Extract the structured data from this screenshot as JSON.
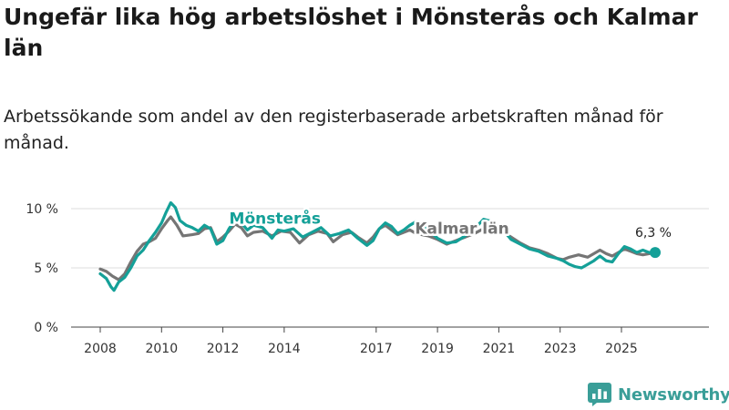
{
  "title": "Ungefär lika hög arbetslöshet i Mönsterås och Kalmar län",
  "subtitle": "Arbetssökande som andel av den registerbaserade arbetskraften månad för månad.",
  "brand": {
    "name": "Newsworthy",
    "icon": "bar-chart-logo-icon",
    "color": "#3a9e98"
  },
  "colors": {
    "monsteras": "#14a098",
    "kalmar": "#757575",
    "grid": "#dddddd",
    "axis": "#444444"
  },
  "chart_data": {
    "type": "line",
    "title": "Ungefär lika hög arbetslöshet i Mönsterås och Kalmar län",
    "xlabel": "",
    "ylabel": "",
    "xlim": [
      2008.0,
      2027.2
    ],
    "ylim": [
      0,
      10
    ],
    "x_ticks": [
      {
        "value": 2008,
        "label": "2008"
      },
      {
        "value": 2010,
        "label": "2010"
      },
      {
        "value": 2012,
        "label": "2012"
      },
      {
        "value": 2014,
        "label": "2014"
      },
      {
        "value": 2017,
        "label": "2017"
      },
      {
        "value": 2019,
        "label": "2019"
      },
      {
        "value": 2021,
        "label": "2021"
      },
      {
        "value": 2023,
        "label": "2023"
      },
      {
        "value": 2025,
        "label": "2025"
      }
    ],
    "y_ticks": [
      {
        "value": 0,
        "label": "0 %"
      },
      {
        "value": 5,
        "label": "5 %"
      },
      {
        "value": 10,
        "label": "10 %"
      }
    ],
    "series": [
      {
        "name": "Kalmar län",
        "color": "#757575",
        "points": [
          [
            2008.0,
            4.9
          ],
          [
            2008.2,
            4.7
          ],
          [
            2008.4,
            4.3
          ],
          [
            2008.6,
            4.0
          ],
          [
            2008.8,
            4.5
          ],
          [
            2009.0,
            5.5
          ],
          [
            2009.2,
            6.4
          ],
          [
            2009.4,
            7.0
          ],
          [
            2009.6,
            7.2
          ],
          [
            2009.8,
            7.5
          ],
          [
            2010.0,
            8.3
          ],
          [
            2010.2,
            9.0
          ],
          [
            2010.3,
            9.3
          ],
          [
            2010.5,
            8.6
          ],
          [
            2010.7,
            7.7
          ],
          [
            2011.0,
            7.8
          ],
          [
            2011.2,
            7.9
          ],
          [
            2011.4,
            8.3
          ],
          [
            2011.6,
            8.4
          ],
          [
            2011.8,
            7.2
          ],
          [
            2012.0,
            7.6
          ],
          [
            2012.2,
            8.1
          ],
          [
            2012.4,
            8.7
          ],
          [
            2012.6,
            8.4
          ],
          [
            2012.8,
            7.7
          ],
          [
            2013.0,
            8.0
          ],
          [
            2013.3,
            8.1
          ],
          [
            2013.6,
            7.7
          ],
          [
            2013.9,
            8.1
          ],
          [
            2014.2,
            8.0
          ],
          [
            2014.5,
            7.1
          ],
          [
            2014.8,
            7.8
          ],
          [
            2015.1,
            8.1
          ],
          [
            2015.4,
            7.9
          ],
          [
            2015.6,
            7.2
          ],
          [
            2015.9,
            7.8
          ],
          [
            2016.2,
            8.0
          ],
          [
            2016.4,
            7.6
          ],
          [
            2016.7,
            7.1
          ],
          [
            2016.9,
            7.6
          ],
          [
            2017.1,
            8.3
          ],
          [
            2017.3,
            8.6
          ],
          [
            2017.5,
            8.2
          ],
          [
            2017.7,
            7.8
          ],
          [
            2017.9,
            8.0
          ],
          [
            2018.1,
            8.2
          ],
          [
            2018.3,
            7.9
          ],
          [
            2018.7,
            7.7
          ],
          [
            2019.0,
            7.4
          ],
          [
            2019.3,
            7.0
          ],
          [
            2019.6,
            7.3
          ],
          [
            2019.9,
            7.6
          ],
          [
            2020.2,
            7.9
          ],
          [
            2020.5,
            8.3
          ],
          [
            2020.8,
            8.6
          ],
          [
            2021.1,
            8.1
          ],
          [
            2021.4,
            7.6
          ],
          [
            2021.7,
            7.1
          ],
          [
            2022.0,
            6.7
          ],
          [
            2022.3,
            6.5
          ],
          [
            2022.6,
            6.2
          ],
          [
            2022.9,
            5.8
          ],
          [
            2023.1,
            5.7
          ],
          [
            2023.3,
            5.9
          ],
          [
            2023.6,
            6.1
          ],
          [
            2023.9,
            5.9
          ],
          [
            2024.1,
            6.2
          ],
          [
            2024.3,
            6.5
          ],
          [
            2024.5,
            6.2
          ],
          [
            2024.7,
            6.0
          ],
          [
            2024.9,
            6.3
          ],
          [
            2025.1,
            6.6
          ],
          [
            2025.3,
            6.4
          ],
          [
            2025.5,
            6.2
          ],
          [
            2025.7,
            6.1
          ],
          [
            2025.9,
            6.2
          ],
          [
            2026.1,
            6.3
          ]
        ]
      },
      {
        "name": "Mönsterås",
        "color": "#14a098",
        "points": [
          [
            2008.0,
            4.5
          ],
          [
            2008.2,
            4.1
          ],
          [
            2008.35,
            3.4
          ],
          [
            2008.45,
            3.1
          ],
          [
            2008.6,
            3.8
          ],
          [
            2008.8,
            4.2
          ],
          [
            2009.0,
            5.0
          ],
          [
            2009.2,
            6.0
          ],
          [
            2009.4,
            6.5
          ],
          [
            2009.6,
            7.3
          ],
          [
            2009.8,
            8.0
          ],
          [
            2010.0,
            8.8
          ],
          [
            2010.15,
            9.7
          ],
          [
            2010.3,
            10.5
          ],
          [
            2010.45,
            10.1
          ],
          [
            2010.6,
            9.0
          ],
          [
            2010.8,
            8.6
          ],
          [
            2011.0,
            8.4
          ],
          [
            2011.2,
            8.1
          ],
          [
            2011.4,
            8.6
          ],
          [
            2011.6,
            8.3
          ],
          [
            2011.8,
            7.0
          ],
          [
            2012.0,
            7.3
          ],
          [
            2012.2,
            8.3
          ],
          [
            2012.4,
            9.0
          ],
          [
            2012.6,
            8.8
          ],
          [
            2012.8,
            8.2
          ],
          [
            2013.0,
            8.6
          ],
          [
            2013.3,
            8.4
          ],
          [
            2013.6,
            7.5
          ],
          [
            2013.8,
            8.2
          ],
          [
            2014.0,
            8.1
          ],
          [
            2014.3,
            8.3
          ],
          [
            2014.6,
            7.6
          ],
          [
            2014.9,
            8.0
          ],
          [
            2015.2,
            8.4
          ],
          [
            2015.5,
            7.7
          ],
          [
            2015.8,
            7.9
          ],
          [
            2016.1,
            8.2
          ],
          [
            2016.4,
            7.5
          ],
          [
            2016.7,
            6.9
          ],
          [
            2016.9,
            7.3
          ],
          [
            2017.1,
            8.3
          ],
          [
            2017.3,
            8.8
          ],
          [
            2017.5,
            8.5
          ],
          [
            2017.7,
            7.9
          ],
          [
            2017.9,
            8.2
          ],
          [
            2018.1,
            8.6
          ],
          [
            2018.3,
            8.9
          ],
          [
            2018.7,
            8.2
          ],
          [
            2019.0,
            7.5
          ],
          [
            2019.3,
            7.1
          ],
          [
            2019.6,
            7.2
          ],
          [
            2019.9,
            7.7
          ],
          [
            2020.2,
            8.3
          ],
          [
            2020.5,
            9.1
          ],
          [
            2020.8,
            8.9
          ],
          [
            2021.1,
            8.3
          ],
          [
            2021.4,
            7.4
          ],
          [
            2021.7,
            7.0
          ],
          [
            2022.0,
            6.6
          ],
          [
            2022.3,
            6.4
          ],
          [
            2022.6,
            6.0
          ],
          [
            2022.9,
            5.8
          ],
          [
            2023.1,
            5.6
          ],
          [
            2023.3,
            5.3
          ],
          [
            2023.5,
            5.1
          ],
          [
            2023.7,
            5.0
          ],
          [
            2023.9,
            5.3
          ],
          [
            2024.1,
            5.6
          ],
          [
            2024.3,
            6.0
          ],
          [
            2024.5,
            5.6
          ],
          [
            2024.7,
            5.5
          ],
          [
            2024.9,
            6.2
          ],
          [
            2025.1,
            6.8
          ],
          [
            2025.3,
            6.6
          ],
          [
            2025.5,
            6.3
          ],
          [
            2025.7,
            6.5
          ],
          [
            2025.9,
            6.3
          ],
          [
            2026.1,
            6.3
          ]
        ]
      }
    ],
    "annotations": [
      {
        "series": "Mönsterås",
        "text": "Mönsterås",
        "x": 2013.7,
        "y": 8.75
      },
      {
        "series": "Kalmar län",
        "text": "Kalmar län",
        "x": 2019.8,
        "y": 7.9
      }
    ],
    "end_label": {
      "text": "6,3 %",
      "x": 2026.1,
      "y": 6.3
    }
  }
}
